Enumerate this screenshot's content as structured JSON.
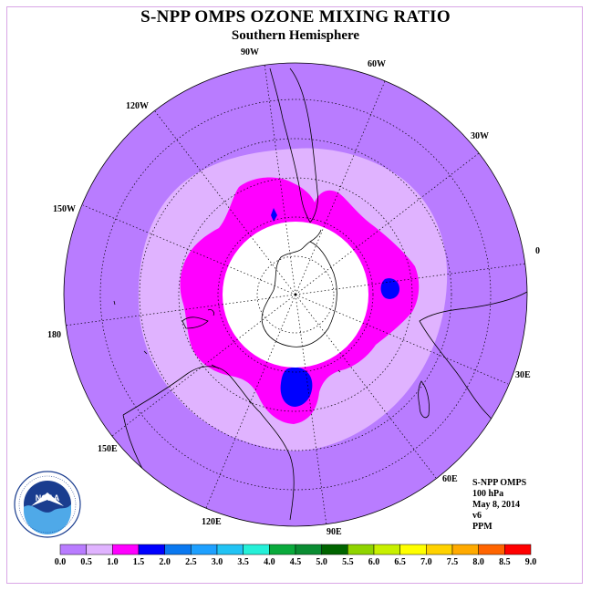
{
  "title": "S-NPP OMPS OZONE MIXING RATIO",
  "subtitle": "Southern Hemisphere",
  "info": {
    "instrument": "S-NPP OMPS",
    "level": "100 hPa",
    "date": "May 8, 2014",
    "version": "v6",
    "units": "PPM"
  },
  "logo": {
    "text": "NOAA",
    "ring_text": "NATIONAL OCEANIC AND ATMOSPHERIC ADMINISTRATION · U.S. DEPARTMENT OF COMMERCE"
  },
  "longitude_labels": [
    "0",
    "30E",
    "60E",
    "90E",
    "120E",
    "150E",
    "180",
    "150W",
    "120W",
    "90W",
    "60W",
    "30W"
  ],
  "colorbar": {
    "labels": [
      "0.0",
      "0.5",
      "1.0",
      "1.5",
      "2.0",
      "2.5",
      "3.0",
      "3.5",
      "4.0",
      "4.5",
      "5.0",
      "5.5",
      "6.0",
      "6.5",
      "7.0",
      "7.5",
      "8.0",
      "8.5",
      "9.0"
    ],
    "colors": [
      "#b97cff",
      "#e0b3ff",
      "#ff00ff",
      "#0000ff",
      "#0a78f0",
      "#1ea0ff",
      "#21c3f4",
      "#25f0d8",
      "#0aaa3c",
      "#0a8c32",
      "#006400",
      "#8fd400",
      "#c8f000",
      "#ffff00",
      "#ffd200",
      "#ffaa00",
      "#ff6400",
      "#ff0000",
      "#8b4513"
    ]
  },
  "colors": {
    "ocean_fill": "#b97cff",
    "band_0_5_1_0": "#e0b3ff",
    "band_1_0_1_5": "#ff00ff",
    "band_1_5_2_0": "#0000ff",
    "frame": "#d9a6e6"
  }
}
